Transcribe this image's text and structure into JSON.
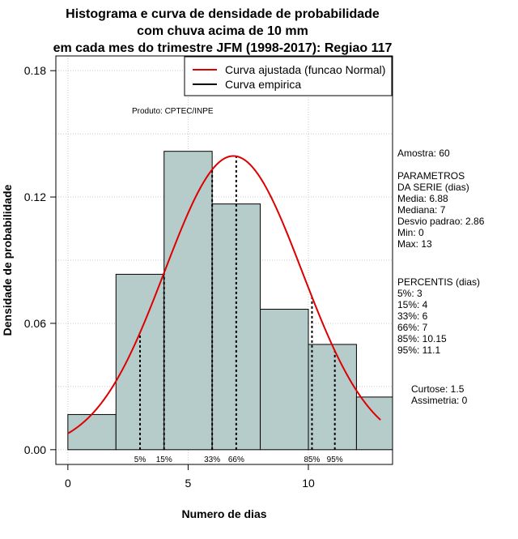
{
  "chart_data": {
    "type": "bar",
    "title_lines": [
      "Histograma e curva de densidade de probabilidade",
      "com chuva acima de 10 mm",
      "em cada mes do trimestre JFM (1998-2017): Regiao 117"
    ],
    "xlabel": "Numero de dias",
    "ylabel": "Densidade de probabilidade",
    "xlim": [
      -0.5,
      13.5
    ],
    "ylim": [
      -0.007,
      0.187
    ],
    "x_ticks": [
      {
        "value": 0,
        "label": "0"
      },
      {
        "value": 5,
        "label": "5"
      },
      {
        "value": 10,
        "label": "10"
      }
    ],
    "y_ticks": [
      {
        "value": 0.0,
        "label": "0.00"
      },
      {
        "value": 0.06,
        "label": "0.06"
      },
      {
        "value": 0.12,
        "label": "0.12"
      },
      {
        "value": 0.18,
        "label": "0.18"
      }
    ],
    "grid": true,
    "bins": [
      {
        "x0": 0,
        "x1": 2,
        "density": 0.0167
      },
      {
        "x0": 2,
        "x1": 4,
        "density": 0.0833
      },
      {
        "x0": 4,
        "x1": 6,
        "density": 0.1417
      },
      {
        "x0": 6,
        "x1": 8,
        "density": 0.1167
      },
      {
        "x0": 8,
        "x1": 10,
        "density": 0.0667
      },
      {
        "x0": 10,
        "x1": 12,
        "density": 0.05
      },
      {
        "x0": 12,
        "x1": 14,
        "density": 0.025
      }
    ],
    "bar_fill": "#b6cccb",
    "normal_curve": {
      "mean": 6.88,
      "sd": 2.86,
      "x_from": 0,
      "x_to": 13,
      "color": "#dd0000"
    },
    "percentile_lines": [
      {
        "x": 3,
        "label": "5%"
      },
      {
        "x": 4,
        "label": "15%"
      },
      {
        "x": 6,
        "label": "33%"
      },
      {
        "x": 7,
        "label": "66%"
      },
      {
        "x": 10.15,
        "label": "85%"
      },
      {
        "x": 11.1,
        "label": "95%"
      }
    ],
    "legend": {
      "position": "top-right",
      "entries": [
        {
          "label": "Curva ajustada (funcao Normal)",
          "color": "#dd0000"
        },
        {
          "label": "Curva empirica",
          "color": "#000000"
        }
      ]
    },
    "annotation_produto": "Produto: CPTEC/INPE"
  },
  "stats_panel": {
    "amostra": "Amostra: 60",
    "parametros": [
      " PARAMETROS",
      "DA SERIE (dias)",
      "  Media: 6.88",
      "  Mediana: 7",
      "  Desvio padrao: 2.86",
      "  Min: 0",
      "  Max: 13"
    ],
    "percentis": [
      "PERCENTIS (dias)",
      "   5%: 3",
      "   15%: 4",
      "   33%: 6",
      "   66%: 7",
      "   85%: 10.15",
      "   95%: 11.1"
    ],
    "curtose": "Curtose: 1.5",
    "assimetria": "Assimetria: 0"
  }
}
